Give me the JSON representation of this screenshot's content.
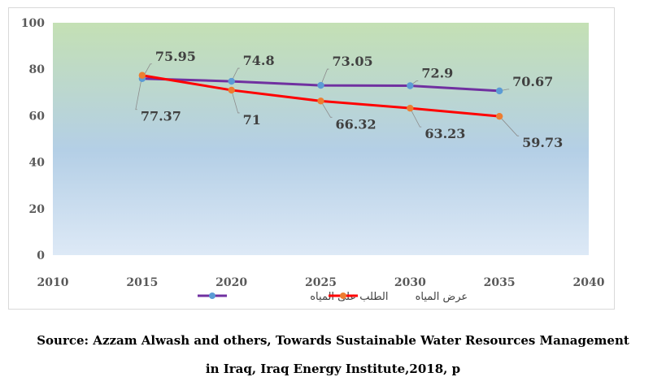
{
  "chart_data": {
    "type": "line",
    "x": [
      2015,
      2020,
      2025,
      2030,
      2035
    ],
    "xlim": [
      2010,
      2040
    ],
    "x_ticks": [
      "2010",
      "2015",
      "2020",
      "2025",
      "2030",
      "2035",
      "2040"
    ],
    "ylim": [
      0,
      100
    ],
    "y_ticks": [
      "0",
      "20",
      "40",
      "60",
      "80",
      "100"
    ],
    "grid": false,
    "legend_position": "bottom",
    "background": "vertical gradient from green (top) to light blue (bottom)",
    "series": [
      {
        "name": "الطلب على المياه",
        "color": "#7030a0",
        "marker_color": "#5b9bd5",
        "values": [
          75.95,
          74.8,
          73.05,
          72.9,
          70.67
        ],
        "labels": [
          "75.95",
          "74.8",
          "73.05",
          "72.9",
          "70.67"
        ]
      },
      {
        "name": "عرض المياه",
        "color": "#ff0000",
        "marker_color": "#ed7d31",
        "values": [
          77.37,
          71,
          66.32,
          63.23,
          59.73
        ],
        "labels": [
          "77.37",
          "71",
          "66.32",
          "63.23",
          "59.73"
        ]
      }
    ]
  },
  "source": {
    "line1": "Source: Azzam Alwash and others, Towards Sustainable Water Resources Management",
    "line2": "in Iraq, Iraq Energy Institute,2018, p"
  }
}
